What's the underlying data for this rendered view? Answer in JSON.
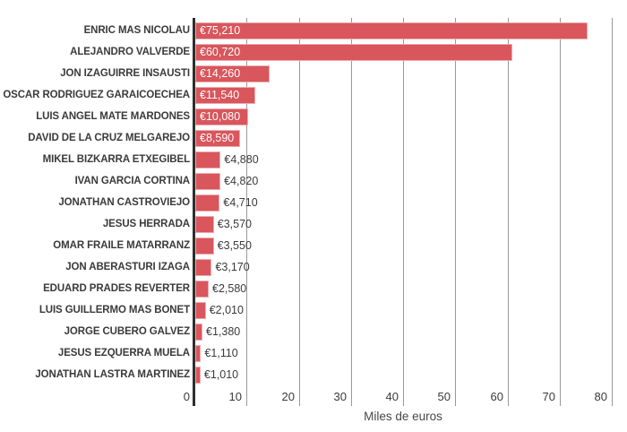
{
  "chart_data": {
    "type": "bar",
    "orientation": "horizontal",
    "title": "",
    "xlabel": "Miles de euros",
    "xlim": [
      0,
      80
    ],
    "x_ticks": [
      0,
      10,
      20,
      30,
      40,
      50,
      60,
      70,
      80
    ],
    "x_units": "thousands of euros",
    "grid": true,
    "legend": false,
    "categories": [
      "ENRIC MAS NICOLAU",
      "ALEJANDRO VALVERDE",
      "JON IZAGUIRRE INSAUSTI",
      "OSCAR RODRIGUEZ GARAICOECHEA",
      "LUIS ANGEL MATE MARDONES",
      "DAVID DE LA CRUZ MELGAREJO",
      "MIKEL BIZKARRA ETXEGIBEL",
      "IVAN GARCIA CORTINA",
      "JONATHAN CASTROVIEJO",
      "JESUS HERRADA",
      "OMAR FRAILE MATARRANZ",
      "JON ABERASTURI IZAGA",
      "EDUARD PRADES REVERTER",
      "LUIS GUILLERMO MAS BONET",
      "JORGE CUBERO GALVEZ",
      "JESUS EZQUERRA MUELA",
      "JONATHAN LASTRA MARTINEZ"
    ],
    "values_eur": [
      75210,
      60720,
      14260,
      11540,
      10080,
      8590,
      4880,
      4820,
      4710,
      3570,
      3550,
      3170,
      2580,
      2010,
      1380,
      1110,
      1010
    ],
    "values_axis": [
      75.21,
      60.72,
      14.26,
      11.54,
      10.08,
      8.59,
      4.88,
      4.82,
      4.71,
      3.57,
      3.55,
      3.17,
      2.58,
      2.01,
      1.38,
      1.11,
      1.01
    ],
    "value_labels": [
      "€75,210",
      "€60,720",
      "€14,260",
      "€11,540",
      "€10,080",
      "€8,590",
      "€4,880",
      "€4,820",
      "€4,710",
      "€3,570",
      "€3,550",
      "€3,170",
      "€2,580",
      "€2,010",
      "€1,380",
      "€1,110",
      "€1,010"
    ]
  },
  "colors": {
    "bar": "#d8565c",
    "gridline": "#999999",
    "zero_axis": "#2e2e2e",
    "category_text": "#3a3a3a",
    "value_text_inside": "#ffffff",
    "value_text_outside": "#3a3a3a",
    "tick_text": "#3a3a3a",
    "axis_title_text": "#474747",
    "background": "#ffffff"
  }
}
